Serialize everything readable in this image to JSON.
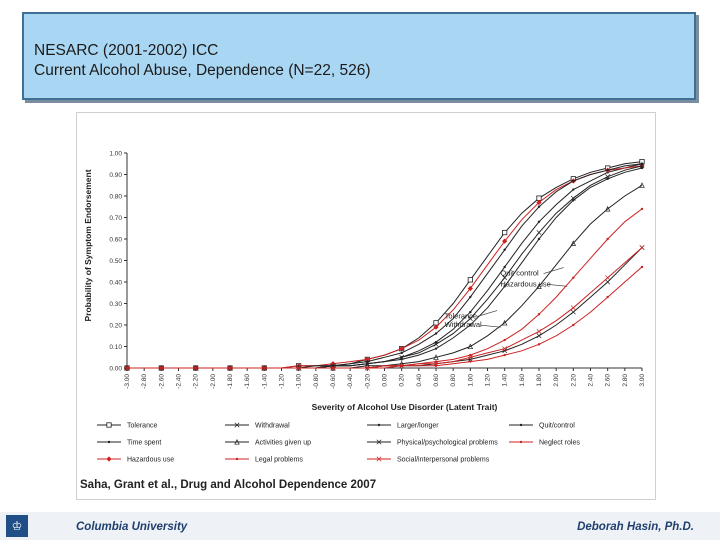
{
  "slide": {
    "title_line1": "NESARC (2001-2002) ICC",
    "title_line2": "Current Alcohol Abuse, Dependence (N=22, 526)",
    "citation": "Saha, Grant et al., Drug and Alcohol Dependence 2007",
    "footer_left": "Columbia University",
    "footer_right": "Deborah  Hasin, Ph.D.",
    "logo_icon": "crown-shield-icon"
  },
  "chart_data": {
    "type": "line",
    "xlabel": "Severity of Alcohol Use Disorder (Latent Trait)",
    "ylabel": "Probability of Symptom Endorsement",
    "xlim": [
      -3.0,
      3.0
    ],
    "ylim": [
      0.0,
      1.0
    ],
    "x_ticks": [
      -3.0,
      -2.8,
      -2.6,
      -2.4,
      -2.2,
      -2.0,
      -1.8,
      -1.6,
      -1.4,
      -1.2,
      -1.0,
      -0.8,
      -0.6,
      -0.4,
      -0.2,
      0.0,
      0.2,
      0.4,
      0.6,
      0.8,
      1.0,
      1.2,
      1.4,
      1.6,
      1.8,
      2.0,
      2.2,
      2.4,
      2.6,
      2.8,
      3.0
    ],
    "x_tick_labels": [
      "-3.00",
      "-2.80",
      "-2.60",
      "-2.40",
      "-2.20",
      "-2.00",
      "-1.80",
      "-1.60",
      "-1.40",
      "-1.20",
      "-1.00",
      "-0.80",
      "-0.60",
      "-0.40",
      "-0.20",
      "0.00",
      "0.20",
      "0.40",
      "0.60",
      "0.80",
      "1.00",
      "1.20",
      "1.40",
      "1.60",
      "1.80",
      "2.00",
      "2.20",
      "2.40",
      "2.60",
      "2.80",
      "3.00"
    ],
    "y_ticks": [
      0.0,
      0.1,
      0.2,
      0.3,
      0.4,
      0.5,
      0.6,
      0.7,
      0.8,
      0.9,
      1.0
    ],
    "y_tick_labels": [
      "0.00",
      "0.10",
      "0.20",
      "0.30",
      "0.40",
      "0.50",
      "0.60",
      "0.70",
      "0.80",
      "0.90",
      "1.00"
    ],
    "grid": false,
    "legend_position": "bottom",
    "annotations": [
      {
        "text": "Quit control",
        "x": 1.35,
        "y": 0.43
      },
      {
        "text": "Hazardous use",
        "x": 1.35,
        "y": 0.38
      },
      {
        "text": "Tolerance",
        "x": 0.7,
        "y": 0.23
      },
      {
        "text": "Withdrawal",
        "x": 0.7,
        "y": 0.19
      }
    ],
    "x": [
      -3.0,
      -2.8,
      -2.6,
      -2.4,
      -2.2,
      -2.0,
      -1.8,
      -1.6,
      -1.4,
      -1.2,
      -1.0,
      -0.8,
      -0.6,
      -0.4,
      -0.2,
      0.0,
      0.2,
      0.4,
      0.6,
      0.8,
      1.0,
      1.2,
      1.4,
      1.6,
      1.8,
      2.0,
      2.2,
      2.4,
      2.6,
      2.8,
      3.0
    ],
    "series": [
      {
        "name": "Tolerance",
        "color": "#222222",
        "marker": "square",
        "values": [
          0.0,
          0.0,
          0.0,
          0.0,
          0.0,
          0.0,
          0.0,
          0.0,
          0.0,
          0.0,
          0.01,
          0.01,
          0.01,
          0.02,
          0.04,
          0.06,
          0.09,
          0.14,
          0.21,
          0.3,
          0.41,
          0.52,
          0.63,
          0.72,
          0.79,
          0.84,
          0.88,
          0.91,
          0.93,
          0.95,
          0.96
        ]
      },
      {
        "name": "Time spent",
        "color": "#222222",
        "marker": "none",
        "values": [
          0.0,
          0.0,
          0.0,
          0.0,
          0.0,
          0.0,
          0.0,
          0.0,
          0.0,
          0.0,
          0.0,
          0.0,
          0.01,
          0.01,
          0.02,
          0.03,
          0.05,
          0.08,
          0.12,
          0.18,
          0.26,
          0.36,
          0.47,
          0.58,
          0.68,
          0.76,
          0.83,
          0.87,
          0.91,
          0.93,
          0.95
        ]
      },
      {
        "name": "Hazardous use",
        "color": "#cc2222",
        "marker": "diamond",
        "values": [
          0.0,
          0.0,
          0.0,
          0.0,
          0.0,
          0.0,
          0.0,
          0.0,
          0.0,
          0.0,
          0.01,
          0.01,
          0.02,
          0.03,
          0.04,
          0.06,
          0.09,
          0.13,
          0.19,
          0.27,
          0.37,
          0.48,
          0.59,
          0.69,
          0.77,
          0.83,
          0.87,
          0.9,
          0.92,
          0.93,
          0.94
        ]
      },
      {
        "name": "Withdrawal",
        "color": "#222222",
        "marker": "x",
        "values": [
          0.0,
          0.0,
          0.0,
          0.0,
          0.0,
          0.0,
          0.0,
          0.0,
          0.0,
          0.0,
          0.0,
          0.0,
          0.01,
          0.01,
          0.02,
          0.03,
          0.05,
          0.07,
          0.11,
          0.16,
          0.23,
          0.32,
          0.42,
          0.53,
          0.63,
          0.72,
          0.79,
          0.85,
          0.89,
          0.92,
          0.94
        ]
      },
      {
        "name": "Activities given up",
        "color": "#222222",
        "marker": "triangle",
        "values": [
          0.0,
          0.0,
          0.0,
          0.0,
          0.0,
          0.0,
          0.0,
          0.0,
          0.0,
          0.0,
          0.0,
          0.0,
          0.0,
          0.0,
          0.01,
          0.01,
          0.02,
          0.03,
          0.05,
          0.07,
          0.1,
          0.15,
          0.21,
          0.29,
          0.38,
          0.48,
          0.58,
          0.67,
          0.74,
          0.8,
          0.85
        ]
      },
      {
        "name": "Legal problems",
        "color": "#cc2222",
        "marker": "none",
        "values": [
          0.0,
          0.0,
          0.0,
          0.0,
          0.0,
          0.0,
          0.0,
          0.0,
          0.0,
          0.0,
          0.0,
          0.0,
          0.0,
          0.0,
          0.0,
          0.01,
          0.01,
          0.02,
          0.03,
          0.04,
          0.06,
          0.09,
          0.13,
          0.18,
          0.25,
          0.33,
          0.42,
          0.51,
          0.6,
          0.68,
          0.74
        ]
      },
      {
        "name": "Larger/longer",
        "color": "#222222",
        "marker": "none",
        "values": [
          0.0,
          0.0,
          0.0,
          0.0,
          0.0,
          0.0,
          0.0,
          0.0,
          0.0,
          0.0,
          0.0,
          0.0,
          0.01,
          0.01,
          0.02,
          0.03,
          0.04,
          0.06,
          0.09,
          0.14,
          0.2,
          0.28,
          0.38,
          0.49,
          0.6,
          0.7,
          0.78,
          0.84,
          0.88,
          0.91,
          0.93
        ]
      },
      {
        "name": "Physical/psychological problems",
        "color": "#222222",
        "marker": "x",
        "values": [
          0.0,
          0.0,
          0.0,
          0.0,
          0.0,
          0.0,
          0.0,
          0.0,
          0.0,
          0.0,
          0.0,
          0.0,
          0.0,
          0.0,
          0.0,
          0.01,
          0.01,
          0.01,
          0.02,
          0.03,
          0.04,
          0.06,
          0.08,
          0.11,
          0.15,
          0.2,
          0.26,
          0.33,
          0.4,
          0.48,
          0.56
        ]
      },
      {
        "name": "Social/interpersonal problems",
        "color": "#cc2222",
        "marker": "x",
        "values": [
          0.0,
          0.0,
          0.0,
          0.0,
          0.0,
          0.0,
          0.0,
          0.0,
          0.0,
          0.0,
          0.0,
          0.0,
          0.0,
          0.0,
          0.0,
          0.01,
          0.01,
          0.02,
          0.02,
          0.03,
          0.05,
          0.07,
          0.09,
          0.13,
          0.17,
          0.22,
          0.28,
          0.35,
          0.42,
          0.49,
          0.56
        ]
      },
      {
        "name": "Quit/control",
        "color": "#222222",
        "marker": "none",
        "values": [
          0.0,
          0.0,
          0.0,
          0.0,
          0.0,
          0.0,
          0.0,
          0.0,
          0.0,
          0.0,
          0.0,
          0.01,
          0.01,
          0.02,
          0.03,
          0.05,
          0.07,
          0.11,
          0.16,
          0.23,
          0.33,
          0.44,
          0.55,
          0.66,
          0.75,
          0.82,
          0.87,
          0.9,
          0.92,
          0.94,
          0.95
        ]
      },
      {
        "name": "Neglect roles",
        "color": "#cc2222",
        "marker": "none",
        "values": [
          0.0,
          0.0,
          0.0,
          0.0,
          0.0,
          0.0,
          0.0,
          0.0,
          0.0,
          0.0,
          0.0,
          0.0,
          0.0,
          0.0,
          0.0,
          0.0,
          0.01,
          0.01,
          0.01,
          0.02,
          0.03,
          0.04,
          0.06,
          0.08,
          0.11,
          0.15,
          0.2,
          0.26,
          0.33,
          0.4,
          0.47
        ]
      }
    ],
    "legend_rows": [
      [
        "Tolerance",
        "Withdrawal",
        "Larger/longer",
        "Quit/control"
      ],
      [
        "Time spent",
        "Activities given up",
        "Physical/psychological problems",
        "Neglect roles"
      ],
      [
        "Hazardous use",
        "Legal problems",
        "Social/interpersonal problems"
      ]
    ]
  }
}
